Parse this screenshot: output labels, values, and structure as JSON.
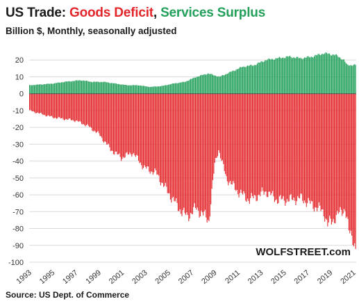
{
  "title": {
    "prefix": "US Trade: ",
    "deficit": "Goods Deficit",
    "separator": ", ",
    "surplus": "Services Surplus"
  },
  "subtitle": "Billion $, Monthly, seasonally adjusted",
  "source": "Source: US Dept. of Commerce",
  "brand": "WOLFSTREET.com",
  "colors": {
    "deficit": "#e3262a",
    "surplus": "#22a05a",
    "grid": "#d9d9d9",
    "zero": "#555555"
  },
  "chart_data": {
    "type": "bar",
    "frequency": "monthly",
    "x_start": "1993-01",
    "x_end": "2021-03",
    "ylim": [
      -100,
      30
    ],
    "yticks": [
      20,
      10,
      0,
      -10,
      -20,
      -30,
      -40,
      -50,
      -60,
      -70,
      -80,
      -90,
      -100
    ],
    "xticks": [
      "1993",
      "1995",
      "1997",
      "1999",
      "2001",
      "2003",
      "2005",
      "2007",
      "2009",
      "2011",
      "2013",
      "2015",
      "2017",
      "2019",
      "2021"
    ],
    "grid": true,
    "series": [
      {
        "name": "Goods Deficit",
        "anchors": [
          [
            "1993-01",
            -10
          ],
          [
            "1994-01",
            -12
          ],
          [
            "1995-01",
            -14
          ],
          [
            "1996-01",
            -15
          ],
          [
            "1997-01",
            -16
          ],
          [
            "1998-01",
            -19
          ],
          [
            "1999-01",
            -24
          ],
          [
            "2000-01",
            -33
          ],
          [
            "2000-12",
            -38
          ],
          [
            "2001-12",
            -35
          ],
          [
            "2002-12",
            -44
          ],
          [
            "2003-12",
            -47
          ],
          [
            "2004-12",
            -58
          ],
          [
            "2005-12",
            -68
          ],
          [
            "2006-08",
            -73
          ],
          [
            "2007-06",
            -68
          ],
          [
            "2008-07",
            -75
          ],
          [
            "2009-01",
            -42
          ],
          [
            "2009-05",
            -33
          ],
          [
            "2010-01",
            -50
          ],
          [
            "2011-01",
            -58
          ],
          [
            "2012-01",
            -63
          ],
          [
            "2013-06",
            -58
          ],
          [
            "2014-06",
            -63
          ],
          [
            "2015-06",
            -63
          ],
          [
            "2016-06",
            -62
          ],
          [
            "2017-06",
            -66
          ],
          [
            "2018-06",
            -70
          ],
          [
            "2018-10",
            -78
          ],
          [
            "2019-12",
            -70
          ],
          [
            "2020-04",
            -68
          ],
          [
            "2020-08",
            -82
          ],
          [
            "2020-12",
            -85
          ],
          [
            "2021-03",
            -92
          ]
        ]
      },
      {
        "name": "Services Surplus",
        "anchors": [
          [
            "1993-01",
            5
          ],
          [
            "1994-01",
            5.5
          ],
          [
            "1995-01",
            6
          ],
          [
            "1996-01",
            7
          ],
          [
            "1997-06",
            8
          ],
          [
            "1998-06",
            7
          ],
          [
            "1999-06",
            7
          ],
          [
            "2000-06",
            6
          ],
          [
            "2001-06",
            5
          ],
          [
            "2002-06",
            5
          ],
          [
            "2003-06",
            4
          ],
          [
            "2004-06",
            4.5
          ],
          [
            "2005-06",
            6
          ],
          [
            "2006-06",
            7
          ],
          [
            "2007-06",
            10
          ],
          [
            "2008-06",
            12
          ],
          [
            "2009-06",
            10
          ],
          [
            "2010-06",
            13
          ],
          [
            "2011-06",
            16
          ],
          [
            "2012-06",
            17
          ],
          [
            "2013-06",
            20
          ],
          [
            "2014-06",
            21
          ],
          [
            "2015-06",
            22
          ],
          [
            "2016-06",
            21
          ],
          [
            "2017-06",
            22
          ],
          [
            "2018-06",
            24
          ],
          [
            "2019-06",
            23
          ],
          [
            "2020-03",
            20
          ],
          [
            "2020-06",
            17
          ],
          [
            "2021-03",
            17
          ]
        ]
      }
    ]
  }
}
